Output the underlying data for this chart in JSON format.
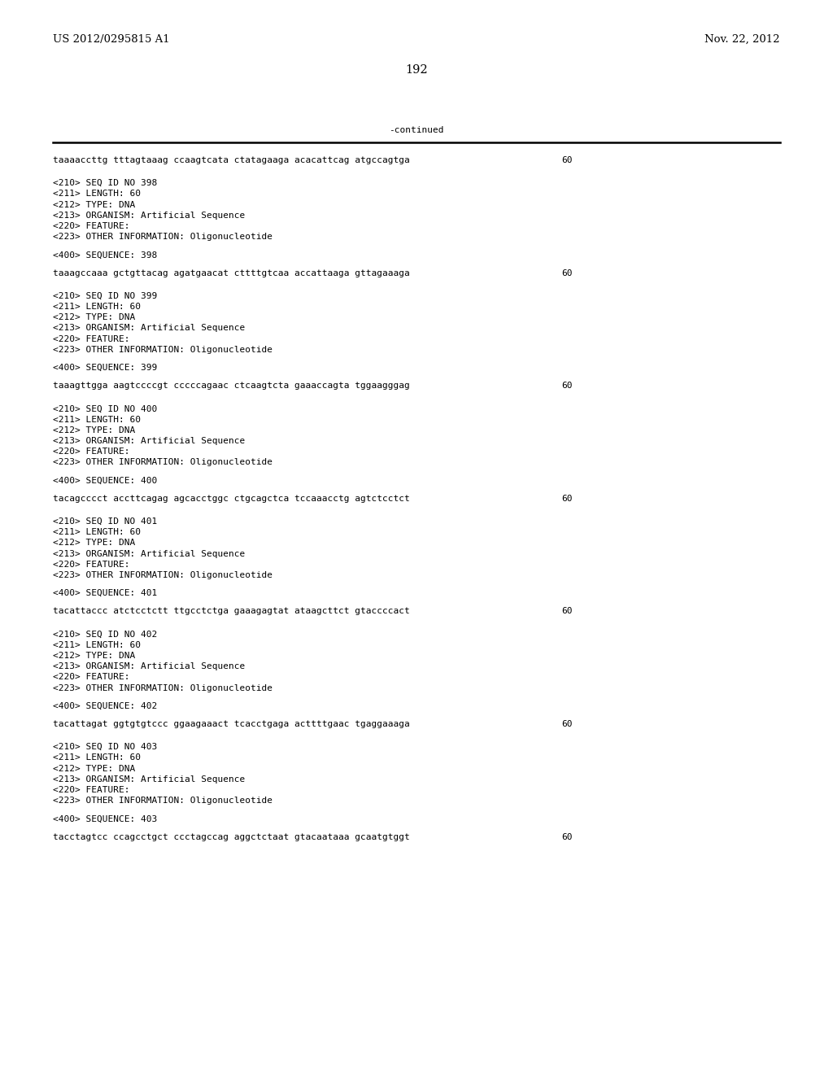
{
  "header_left": "US 2012/0295815 A1",
  "header_right": "Nov. 22, 2012",
  "page_number": "192",
  "continued_label": "-continued",
  "background_color": "#ffffff",
  "text_color": "#000000",
  "line_color": "#000000",
  "blocks": [
    {
      "type": "sequence_line",
      "text": "taaaaccttg tttagtaaag ccaagtcata ctatagaaga acacattcag atgccagtga",
      "number": "60"
    },
    {
      "type": "metadata",
      "lines": [
        "<210> SEQ ID NO 398",
        "<211> LENGTH: 60",
        "<212> TYPE: DNA",
        "<213> ORGANISM: Artificial Sequence",
        "<220> FEATURE:",
        "<223> OTHER INFORMATION: Oligonucleotide"
      ]
    },
    {
      "type": "sequence_label",
      "text": "<400> SEQUENCE: 398"
    },
    {
      "type": "sequence_line",
      "text": "taaagccaaa gctgttacag agatgaacat cttttgtcaa accattaaga gttagaaaga",
      "number": "60"
    },
    {
      "type": "metadata",
      "lines": [
        "<210> SEQ ID NO 399",
        "<211> LENGTH: 60",
        "<212> TYPE: DNA",
        "<213> ORGANISM: Artificial Sequence",
        "<220> FEATURE:",
        "<223> OTHER INFORMATION: Oligonucleotide"
      ]
    },
    {
      "type": "sequence_label",
      "text": "<400> SEQUENCE: 399"
    },
    {
      "type": "sequence_line",
      "text": "taaagttgga aagtccccgt cccccagaac ctcaagtcta gaaaccagta tggaagggag",
      "number": "60"
    },
    {
      "type": "metadata",
      "lines": [
        "<210> SEQ ID NO 400",
        "<211> LENGTH: 60",
        "<212> TYPE: DNA",
        "<213> ORGANISM: Artificial Sequence",
        "<220> FEATURE:",
        "<223> OTHER INFORMATION: Oligonucleotide"
      ]
    },
    {
      "type": "sequence_label",
      "text": "<400> SEQUENCE: 400"
    },
    {
      "type": "sequence_line",
      "text": "tacagcccct accttcagag agcacctggc ctgcagctca tccaaacctg agtctcctct",
      "number": "60"
    },
    {
      "type": "metadata",
      "lines": [
        "<210> SEQ ID NO 401",
        "<211> LENGTH: 60",
        "<212> TYPE: DNA",
        "<213> ORGANISM: Artificial Sequence",
        "<220> FEATURE:",
        "<223> OTHER INFORMATION: Oligonucleotide"
      ]
    },
    {
      "type": "sequence_label",
      "text": "<400> SEQUENCE: 401"
    },
    {
      "type": "sequence_line",
      "text": "tacattaccc atctcctctt ttgcctctga gaaagagtat ataagcttct gtaccccact",
      "number": "60"
    },
    {
      "type": "metadata",
      "lines": [
        "<210> SEQ ID NO 402",
        "<211> LENGTH: 60",
        "<212> TYPE: DNA",
        "<213> ORGANISM: Artificial Sequence",
        "<220> FEATURE:",
        "<223> OTHER INFORMATION: Oligonucleotide"
      ]
    },
    {
      "type": "sequence_label",
      "text": "<400> SEQUENCE: 402"
    },
    {
      "type": "sequence_line",
      "text": "tacattagat ggtgtgtccc ggaagaaact tcacctgaga acttttgaac tgaggaaaga",
      "number": "60"
    },
    {
      "type": "metadata",
      "lines": [
        "<210> SEQ ID NO 403",
        "<211> LENGTH: 60",
        "<212> TYPE: DNA",
        "<213> ORGANISM: Artificial Sequence",
        "<220> FEATURE:",
        "<223> OTHER INFORMATION: Oligonucleotide"
      ]
    },
    {
      "type": "sequence_label",
      "text": "<400> SEQUENCE: 403"
    },
    {
      "type": "sequence_line",
      "text": "tacctagtcc ccagcctgct ccctagccag aggctctaat gtacaataaa gcaatgtggt",
      "number": "60"
    }
  ],
  "mono_fontsize": 8.0,
  "header_fontsize": 9.5,
  "page_num_fontsize": 10.5
}
